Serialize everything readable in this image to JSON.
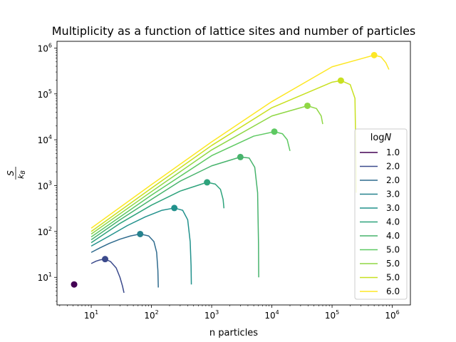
{
  "chart_data": {
    "type": "line",
    "title": "Multiplicity as a function of lattice sites and number of particles",
    "xlabel": "n particles",
    "ylabel_numerator": "S",
    "ylabel_denominator": "k",
    "ylabel_denominator_subscript": "B",
    "xscale": "log",
    "yscale": "log",
    "xlim": [
      2.7,
      2000000
    ],
    "ylim": [
      2.5,
      1400000
    ],
    "xticks": [
      {
        "value": 10,
        "base": "10",
        "exp": "1"
      },
      {
        "value": 100,
        "base": "10",
        "exp": "2"
      },
      {
        "value": 1000,
        "base": "10",
        "exp": "3"
      },
      {
        "value": 10000,
        "base": "10",
        "exp": "4"
      },
      {
        "value": 100000,
        "base": "10",
        "exp": "5"
      },
      {
        "value": 1000000,
        "base": "10",
        "exp": "6"
      }
    ],
    "yticks": [
      {
        "value": 10,
        "base": "10",
        "exp": "1"
      },
      {
        "value": 100,
        "base": "10",
        "exp": "2"
      },
      {
        "value": 1000,
        "base": "10",
        "exp": "3"
      },
      {
        "value": 10000,
        "base": "10",
        "exp": "4"
      },
      {
        "value": 100000,
        "base": "10",
        "exp": "5"
      },
      {
        "value": 1000000,
        "base": "10",
        "exp": "6"
      }
    ],
    "grid": false,
    "legend": {
      "title_text": "log",
      "title_italic": "N",
      "placement": "lower right"
    },
    "series": [
      {
        "name": "1.0",
        "color": "#440154",
        "x": [],
        "y": [],
        "marker": [
          5.2,
          7
        ]
      },
      {
        "name": "2.0",
        "color": "#3b4a8c",
        "x": [
          10,
          12,
          14,
          17,
          21,
          26,
          30,
          33,
          35
        ],
        "y": [
          20,
          22.5,
          24,
          25,
          22,
          16,
          10,
          6.5,
          4.6
        ],
        "marker": [
          17,
          25
        ]
      },
      {
        "name": "2.0",
        "color": "#2f6b8e",
        "x": [
          10,
          14,
          20,
          30,
          45,
          65,
          90,
          110,
          122,
          128,
          130
        ],
        "y": [
          35,
          44,
          55,
          68,
          80,
          88,
          80,
          60,
          35,
          14,
          6
        ]
      },
      {
        "name": "3.0",
        "color": "#26828e",
        "x": [],
        "y": [],
        "marker": [
          65,
          88
        ]
      },
      {
        "name": "3.0",
        "color": "#21918c",
        "x": [
          10,
          20,
          40,
          80,
          150,
          240,
          330,
          400,
          440,
          455,
          460
        ],
        "y": [
          48,
          80,
          135,
          210,
          290,
          325,
          290,
          180,
          60,
          18,
          7
        ],
        "marker": [
          240,
          325
        ]
      },
      {
        "name": "4.0",
        "color": "#2ea37c",
        "x": [
          10,
          30,
          100,
          300,
          840,
          1150,
          1400,
          1550,
          1600
        ],
        "y": [
          57,
          150,
          375,
          760,
          1180,
          1080,
          830,
          500,
          320
        ],
        "marker": [
          840,
          1180
        ]
      },
      {
        "name": "4.0",
        "color": "#47b36c",
        "x": [
          10,
          30,
          100,
          300,
          1000,
          3000,
          4200,
          5200,
          5800,
          6000,
          6050
        ],
        "y": [
          66,
          180,
          500,
          1250,
          2700,
          4200,
          4000,
          2500,
          700,
          55,
          10
        ],
        "marker": [
          3000,
          4200
        ]
      },
      {
        "name": "5.0",
        "color": "#5ec962",
        "x": [
          10,
          100,
          1000,
          5000,
          11000,
          15000,
          18000,
          20000
        ],
        "y": [
          76,
          620,
          4500,
          12000,
          15000,
          13500,
          10000,
          5700
        ],
        "marker": [
          11000,
          15000
        ]
      },
      {
        "name": "5.0",
        "color": "#8fd744",
        "x": [
          10,
          100,
          1000,
          10000,
          39000,
          55000,
          66000,
          70000
        ],
        "y": [
          88,
          740,
          6000,
          33000,
          55000,
          48000,
          33000,
          22000
        ],
        "marker": [
          39000,
          55000
        ]
      },
      {
        "name": "5.0",
        "color": "#c8e020",
        "x": [
          10,
          100,
          1000,
          10000,
          100000,
          140000,
          200000,
          240000,
          250000,
          252000
        ],
        "y": [
          100,
          880,
          7500,
          50000,
          180000,
          195000,
          160000,
          80000,
          3000,
          700
        ],
        "marker": [
          140000,
          195000
        ]
      },
      {
        "name": "6.0",
        "color": "#fde725",
        "x": [
          10,
          100,
          1000,
          10000,
          100000,
          500000,
          650000,
          780000,
          880000
        ],
        "y": [
          118,
          1050,
          9000,
          68000,
          390000,
          700000,
          640000,
          480000,
          340000
        ],
        "marker": [
          500000,
          700000
        ]
      }
    ]
  }
}
